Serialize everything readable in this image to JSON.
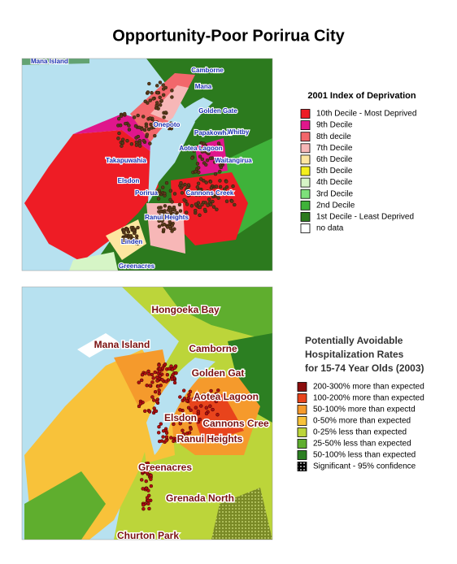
{
  "title": "Opportunity-Poor Porirua City",
  "map1": {
    "places": [
      "Mana Island",
      "Camborne",
      "Mana",
      "Golden Gate",
      "Onepoto",
      "Papakowhai",
      "Whitby",
      "Aotea Lagoon",
      "Takapuwahia",
      "Waitangirua",
      "Elsdon",
      "Porirua",
      "Cannons Creek",
      "Ranui Heights",
      "Linden",
      "Greenacres"
    ],
    "legend": {
      "title": "2001 Index of Deprivation",
      "items": [
        {
          "label": "10th Decile - Most Deprived",
          "color": "#ee1c25"
        },
        {
          "label": "9th Decile",
          "color": "#e0168c"
        },
        {
          "label": "8th decile",
          "color": "#f2676b"
        },
        {
          "label": "7th Decile",
          "color": "#f7b7b7"
        },
        {
          "label": "6th Decile",
          "color": "#fde6a0"
        },
        {
          "label": "5th Decile",
          "color": "#f4ef1c"
        },
        {
          "label": "4th Decile",
          "color": "#d6f5c6"
        },
        {
          "label": "3rd Decile",
          "color": "#7de07a"
        },
        {
          "label": "2nd Decile",
          "color": "#3fb23a"
        },
        {
          "label": "1st Decile - Least Deprived",
          "color": "#2c7a1e"
        },
        {
          "label": "no data",
          "color": "#ffffff"
        }
      ]
    }
  },
  "map2": {
    "places": [
      "Hongoeka Bay",
      "Mana Island",
      "Camborne",
      "Golden Gat",
      "Aotea Lagoon",
      "Elsdon",
      "Cannons Cree",
      "Ranui Heights",
      "Greenacres",
      "Grenada North",
      "Churton Park"
    ],
    "legend": {
      "title_lines": [
        "Potentially Avoidable",
        "Hospitalization Rates",
        "for 15-74 Year Olds (2003)"
      ],
      "items": [
        {
          "label": "200-300% more than expected",
          "color": "#8b0d0d"
        },
        {
          "label": "100-200% more than expected",
          "color": "#e8441c"
        },
        {
          "label": "50-100% more than expectd",
          "color": "#f59a2c"
        },
        {
          "label": "0-50% more than expected",
          "color": "#f8c23a"
        },
        {
          "label": "0-25% less than expected",
          "color": "#bcd53a"
        },
        {
          "label": "25-50% less than expected",
          "color": "#5fae2e"
        },
        {
          "label": "50-100% less than expected",
          "color": "#2c7f22"
        },
        {
          "label": "Significant - 95% confidence",
          "color": "#000000",
          "pattern": "dots"
        }
      ]
    }
  }
}
